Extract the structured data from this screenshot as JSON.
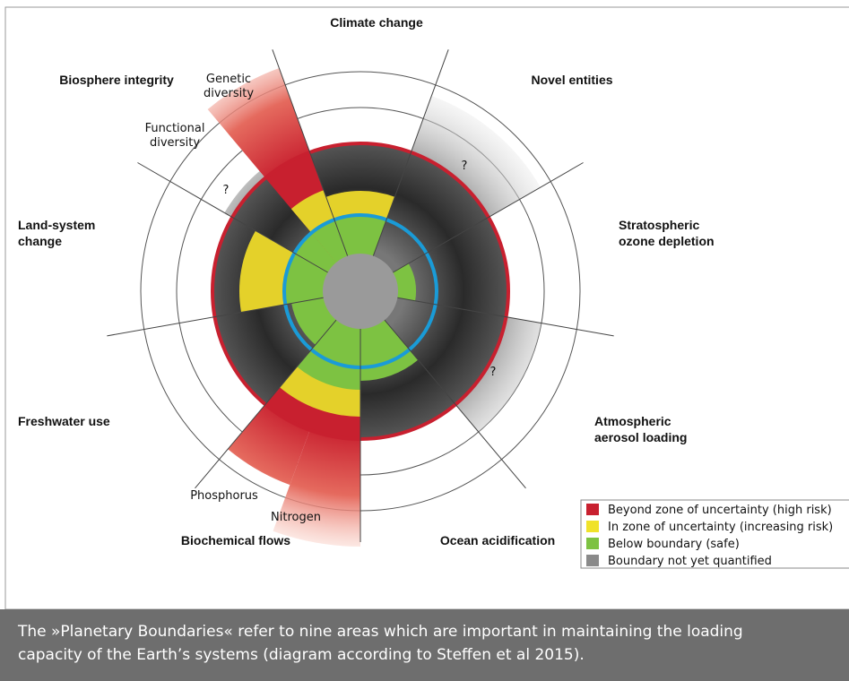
{
  "sectors": [
    {
      "label": [
        "Climate change"
      ]
    },
    {
      "label": [
        "Novel entities"
      ]
    },
    {
      "label": [
        "Stratospheric",
        "ozone depletion"
      ]
    },
    {
      "label": [
        "Atmospheric",
        "aerosol loading"
      ]
    },
    {
      "label": [
        "Ocean acidification"
      ]
    },
    {
      "label": [
        "Biochemical flows"
      ]
    },
    {
      "label": [
        "Freshwater use"
      ]
    },
    {
      "label": [
        "Land-system",
        "change"
      ]
    },
    {
      "label": [
        "Biosphere integrity"
      ]
    }
  ],
  "sub_labels": [
    {
      "label": [
        "Genetic",
        "diversity"
      ]
    },
    {
      "label": [
        "Functional",
        "diversity"
      ]
    },
    {
      "label": [
        "Phosphorus"
      ]
    },
    {
      "label": [
        "Nitrogen"
      ]
    }
  ],
  "unknown_marks": [
    "?",
    "?",
    "?"
  ],
  "legend": [
    {
      "label": "Beyond zone of uncertainty (high risk)",
      "color": "#c8202f"
    },
    {
      "label": "In zone of uncertainty (increasing risk)",
      "color": "#f0e22a"
    },
    {
      "label": "Below boundary (safe)",
      "color": "#7dc242"
    },
    {
      "label": "Boundary not yet quantified",
      "color": "#8a8a8a"
    }
  ],
  "caption": [
    "The »Planetary Boundaries« refer to nine areas which are important in maintaining the loading",
    "capacity of the Earth’s systems (diagram according to Steffen et al 2015)."
  ]
}
